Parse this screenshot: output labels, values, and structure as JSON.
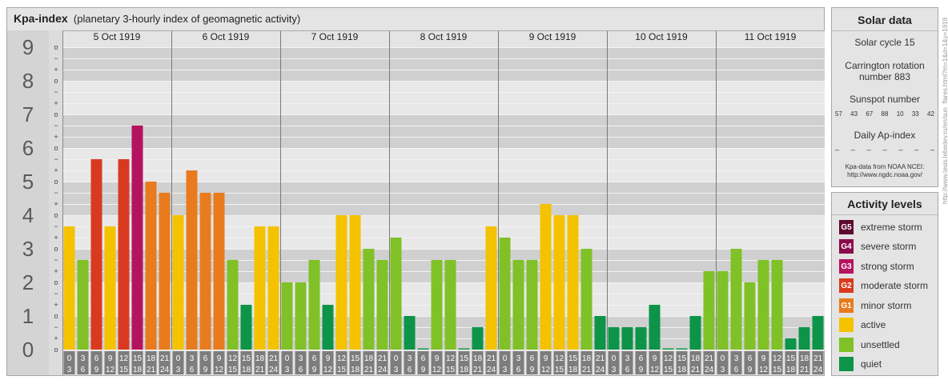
{
  "chart_title": {
    "main": "Kpa-index",
    "sub": "(planetary 3-hourly index of geomagnetic activity)"
  },
  "chart_data": {
    "type": "bar",
    "title": "Kpa-index",
    "subtitle": "(planetary 3-hourly index of geomagnetic activity)",
    "ylim": [
      0,
      9
    ],
    "y_ticks": [
      "0",
      "1",
      "2",
      "3",
      "4",
      "5",
      "6",
      "7",
      "8",
      "9"
    ],
    "sub_ticks": [
      "o",
      "+",
      "−"
    ],
    "grid": true,
    "days": [
      "5 Oct 1919",
      "6 Oct 1919",
      "7 Oct 1919",
      "8 Oct 1919",
      "9 Oct 1919",
      "10 Oct 1919",
      "11 Oct 1919"
    ],
    "interval_top": [
      "0",
      "3",
      "6",
      "9",
      "12",
      "15",
      "18",
      "21"
    ],
    "interval_bottom": [
      "3",
      "6",
      "9",
      "12",
      "15",
      "18",
      "21",
      "24"
    ],
    "values": [
      3.667,
      2.667,
      5.667,
      3.667,
      5.667,
      6.667,
      5.0,
      4.667,
      4.0,
      5.333,
      4.667,
      4.667,
      2.667,
      1.333,
      3.667,
      3.667,
      2.0,
      2.0,
      2.667,
      1.333,
      4.0,
      4.0,
      3.0,
      2.667,
      3.333,
      1.0,
      0.0,
      2.667,
      2.667,
      0.0,
      0.667,
      3.667,
      3.333,
      2.667,
      2.667,
      4.333,
      4.0,
      4.0,
      3.0,
      1.0,
      0.667,
      0.667,
      0.667,
      1.333,
      0.0,
      0.0,
      1.0,
      2.333,
      2.333,
      3.0,
      2.0,
      2.667,
      2.667,
      0.333,
      0.667,
      1.0
    ]
  },
  "solar": {
    "title": "Solar data",
    "cycle": "Solar cycle 15",
    "carrington_line1": "Carrington rotation",
    "carrington_line2": "number 883",
    "sunspot_title": "Sunspot number",
    "sunspots": [
      "57",
      "43",
      "67",
      "88",
      "10",
      "33",
      "42"
    ],
    "ap_title": "Daily Ap-index",
    "ap_values": [
      "–",
      "–",
      "–",
      "–",
      "–",
      "–",
      "–"
    ],
    "credit_line1": "Kpa-data from NOAA NCEI:",
    "credit_line2": "http://www.ngdc.noaa.gov/"
  },
  "levels": {
    "title": "Activity levels",
    "items": [
      {
        "code": "G5",
        "label": "extreme storm",
        "color": "#5c0a2e"
      },
      {
        "code": "G4",
        "label": "severe storm",
        "color": "#8a0a4a"
      },
      {
        "code": "G3",
        "label": "strong storm",
        "color": "#b5135f"
      },
      {
        "code": "G2",
        "label": "moderate storm",
        "color": "#d93a1f"
      },
      {
        "code": "G1",
        "label": "minor storm",
        "color": "#e87b1e"
      },
      {
        "code": "",
        "label": "active",
        "color": "#f5c200"
      },
      {
        "code": "",
        "label": "unsettled",
        "color": "#7fc127"
      },
      {
        "code": "",
        "label": "quiet",
        "color": "#0d9448"
      }
    ]
  },
  "watermark": "http://www.tesis.lebedev.ru/en/sun_flares.html?m=1&d=1&y=1919"
}
